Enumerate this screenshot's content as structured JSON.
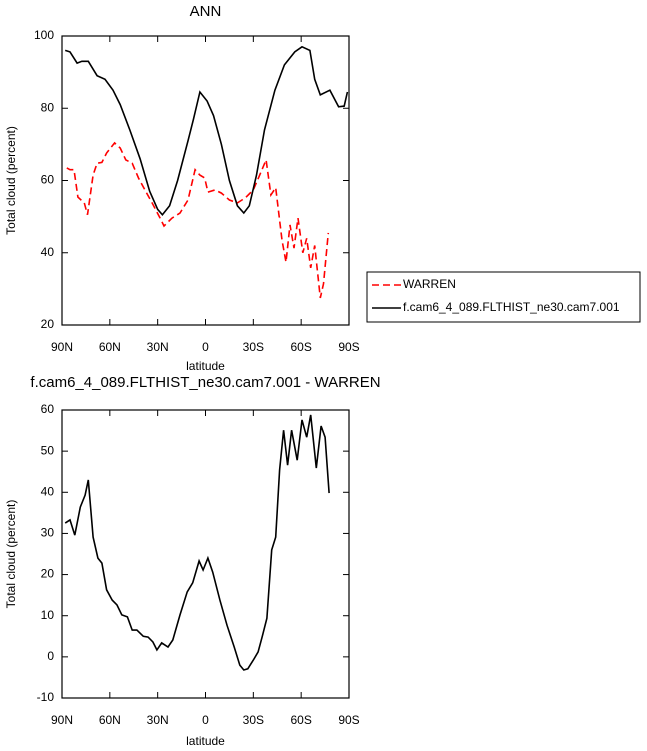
{
  "chart_data": [
    {
      "type": "line",
      "title": "ANN",
      "x_label": "latitude",
      "y_label": "Total cloud (percent)",
      "xlim": [
        90,
        -90
      ],
      "xticks": [
        {
          "value": 90,
          "label": "90N"
        },
        {
          "value": 60,
          "label": "60N"
        },
        {
          "value": 30,
          "label": "30N"
        },
        0,
        {
          "value": -30,
          "label": "30S"
        },
        {
          "value": -60,
          "label": "60S"
        },
        {
          "value": -90,
          "label": "90S"
        }
      ],
      "ylim": [
        20,
        100
      ],
      "yticks": [
        20,
        40,
        60,
        80,
        100
      ],
      "legend": "right",
      "series": [
        {
          "name": "WARREN",
          "color": "#ff0000",
          "dashed": true,
          "x": [
            87,
            85,
            82.5,
            80,
            76,
            74,
            70.5,
            68,
            65,
            62,
            57,
            53.5,
            50,
            46,
            42,
            38,
            33.5,
            28.5,
            26,
            21,
            16,
            11,
            6.5,
            3.5,
            0.5,
            -1.5,
            -6,
            -10,
            -15,
            -20,
            -25,
            -30,
            -34,
            -38,
            -41,
            -44,
            -48,
            -50.5,
            -53,
            -55.5,
            -58,
            -61,
            -63.5,
            -66,
            -68.5,
            -72,
            -74,
            -77
          ],
          "values": [
            63.5,
            63,
            63,
            55.4,
            53.8,
            50.5,
            61.5,
            64.8,
            65,
            67.6,
            70.4,
            69,
            65.7,
            64.8,
            60.7,
            57.4,
            53.8,
            49.6,
            47.4,
            49.6,
            51,
            54.6,
            63,
            61.5,
            60.7,
            56.8,
            57.4,
            56.5,
            54.6,
            53.8,
            55.2,
            57.4,
            61.5,
            65.7,
            56,
            58,
            43.5,
            37.4,
            47.7,
            41.3,
            49.6,
            40,
            44,
            35.8,
            42,
            27.5,
            31.4,
            45.5
          ]
        },
        {
          "name": "f.cam6_4_089.FLTHIST_ne30.cam7.001",
          "color": "#000000",
          "dashed": false,
          "x": [
            88,
            85,
            80.5,
            77.5,
            73.5,
            68,
            63,
            58,
            53.5,
            47.5,
            41,
            35,
            30,
            27,
            22.5,
            17.5,
            11,
            7.5,
            3.5,
            -1,
            -5,
            -10,
            -15,
            -20,
            -24,
            -27.5,
            -32,
            -37,
            -43.5,
            -49.5,
            -56,
            -60.5,
            -65.5,
            -68.5,
            -72,
            -78,
            -83.5,
            -87,
            -89
          ],
          "values": [
            96,
            95.6,
            92.5,
            93,
            93,
            89,
            88,
            85,
            81,
            74,
            66,
            57,
            52,
            50.5,
            53,
            60,
            71,
            77,
            84.5,
            82,
            78,
            70,
            60,
            53,
            51,
            53,
            61.5,
            74,
            85,
            92,
            95.6,
            97,
            96,
            88,
            83.7,
            85,
            80.4,
            80.6,
            84.5
          ]
        }
      ]
    },
    {
      "type": "line",
      "title": "f.cam6_4_089.FLTHIST_ne30.cam7.001 - WARREN",
      "x_label": "latitude",
      "y_label": "Total cloud (percent)",
      "xlim": [
        90,
        -90
      ],
      "xticks": [
        {
          "value": 90,
          "label": "90N"
        },
        {
          "value": 60,
          "label": "60N"
        },
        {
          "value": 30,
          "label": "30N"
        },
        0,
        {
          "value": -30,
          "label": "30S"
        },
        {
          "value": -60,
          "label": "60S"
        },
        {
          "value": -90,
          "label": "90S"
        }
      ],
      "ylim": [
        -10,
        60
      ],
      "yticks": [
        -10,
        0,
        10,
        20,
        30,
        40,
        50,
        60
      ],
      "series": [
        {
          "color": "#000000",
          "dashed": false,
          "x": [
            88,
            85,
            82,
            78.5,
            75.5,
            73.5,
            70.5,
            67.5,
            65,
            62,
            58.5,
            55.5,
            52.5,
            49,
            46,
            43,
            39,
            36,
            33,
            30.5,
            27.5,
            23.5,
            20.5,
            16,
            11.5,
            8,
            4,
            1.5,
            -1.5,
            -4.5,
            -9,
            -13.5,
            -18,
            -21.5,
            -24,
            -26.5,
            -30,
            -33,
            -35.5,
            -38.5,
            -41.5,
            -44,
            -46.5,
            -49,
            -51.5,
            -54,
            -57.5,
            -60.5,
            -63.5,
            -66,
            -69.5,
            -72.5,
            -75,
            -77.5
          ],
          "values": [
            32.5,
            33.3,
            29.6,
            36.4,
            39.3,
            43,
            29.1,
            24,
            22.8,
            16.3,
            13.8,
            12.6,
            10.2,
            9.7,
            6.5,
            6.5,
            5,
            4.8,
            3.6,
            1.7,
            3.4,
            2.4,
            4.1,
            10.2,
            15.8,
            18,
            23.3,
            21.1,
            24,
            20.6,
            13.8,
            7.7,
            2.4,
            -2,
            -3.2,
            -2.9,
            -0.8,
            1.2,
            4.8,
            9.4,
            26,
            29.1,
            45.4,
            55.1,
            46.6,
            55.1,
            47.8,
            57.6,
            53.4,
            58.8,
            45.9,
            56.1,
            53.4,
            39.8
          ]
        }
      ]
    }
  ]
}
